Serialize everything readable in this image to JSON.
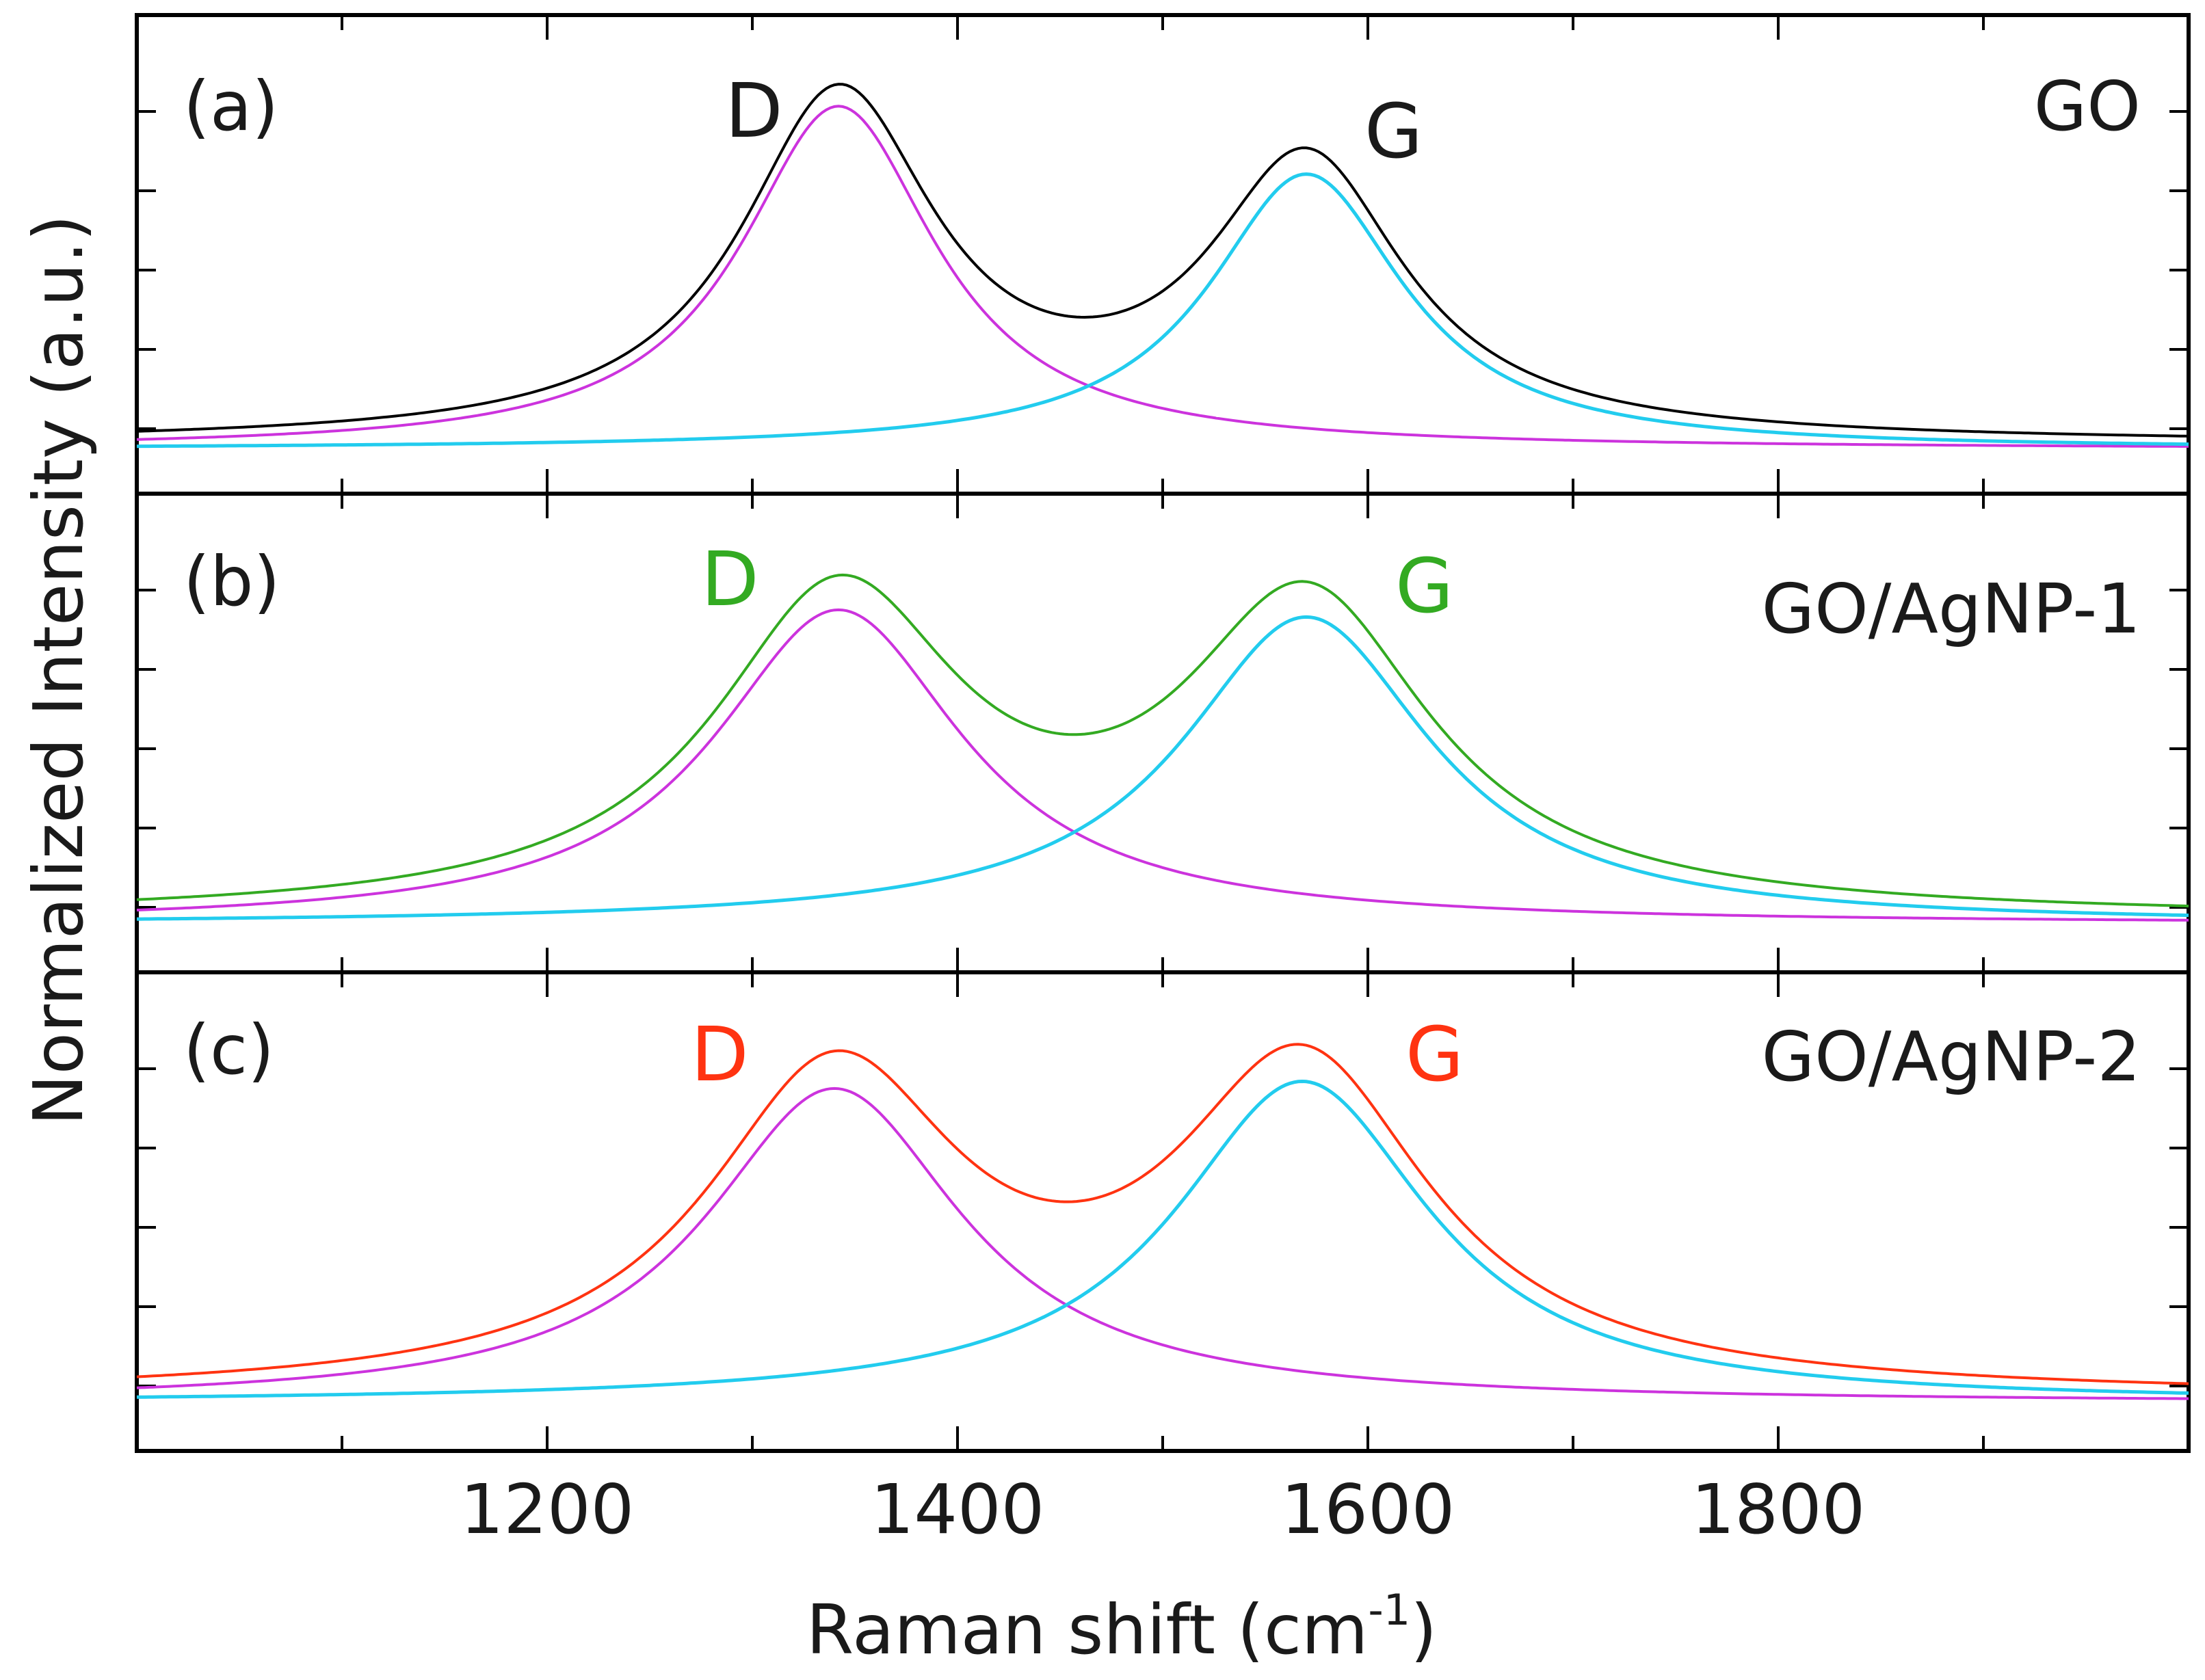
{
  "chart_data": {
    "type": "line",
    "xlabel": "Raman shift (cm",
    "xlabel_superscript": "-1",
    "xlabel_close": ")",
    "ylabel": "Normalized Intensity (a.u.)",
    "xlim": [
      1000,
      2000
    ],
    "x_ticks": [
      1200,
      1400,
      1600,
      1800
    ],
    "x_tick_labels": [
      "1200",
      "1400",
      "1600",
      "1800"
    ],
    "colors": {
      "d_fit": "#cc33dd",
      "g_fit": "#22ccee"
    },
    "panels": [
      {
        "panel": "(a)",
        "sample": "GO",
        "measured_color": "#000000",
        "d_label": "D",
        "g_label": "G",
        "peak_label_color": "#1a1a1a",
        "ylim": [
          0,
          1.12
        ],
        "fits": {
          "d_peak": {
            "center": 1342,
            "amplitude": 0.96,
            "hwhm": 58
          },
          "g_peak": {
            "center": 1570,
            "amplitude": 0.77,
            "hwhm": 58
          },
          "baseline": 0.01
        }
      },
      {
        "panel": "(b)",
        "sample": "GO/AgNP-1",
        "measured_color": "#33aa22",
        "d_label": "D",
        "g_label": "G",
        "peak_label_color": "#33aa22",
        "ylim": [
          0,
          1.12
        ],
        "fits": {
          "d_peak": {
            "center": 1342,
            "amplitude": 0.88,
            "hwhm": 74
          },
          "g_peak": {
            "center": 1570,
            "amplitude": 0.86,
            "hwhm": 74
          },
          "baseline": 0.02
        }
      },
      {
        "panel": "(c)",
        "sample": "GO/AgNP-2",
        "measured_color": "#ff3311",
        "d_label": "D",
        "g_label": "G",
        "peak_label_color": "#ff3311",
        "ylim": [
          0,
          1.12
        ],
        "fits": {
          "d_peak": {
            "center": 1340,
            "amplitude": 0.88,
            "hwhm": 76
          },
          "g_peak": {
            "center": 1568,
            "amplitude": 0.9,
            "hwhm": 76
          },
          "baseline": 0.02
        }
      }
    ]
  }
}
